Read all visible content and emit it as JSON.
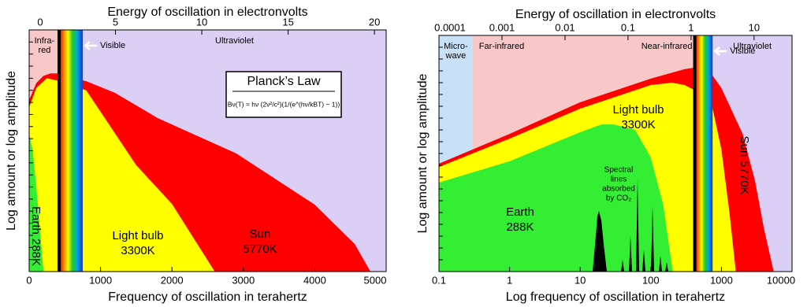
{
  "chart_data": [
    {
      "type": "area",
      "xlabel": "Frequency of oscillation in terahertz",
      "x2label": "Energy of oscillation in electronvolts",
      "ylabel": "Log amount or log amplitude",
      "xlim": [
        0,
        5000
      ],
      "xticks": [
        0,
        1000,
        2000,
        3000,
        4000,
        5000
      ],
      "x2lim": [
        0,
        20.68
      ],
      "x2ticks": [
        0,
        5,
        10,
        15,
        20
      ],
      "ylim": [
        0,
        100
      ],
      "xlog": false,
      "regions": [
        {
          "label": [
            "Infra-",
            "red"
          ],
          "from": 0,
          "to": 430,
          "color": "#f8c8c8"
        },
        {
          "label": [
            "Visible"
          ],
          "from": 430,
          "to": 750,
          "color": "spectrum"
        },
        {
          "label": [
            "Ultraviolet"
          ],
          "from": 750,
          "to": 5000,
          "color": "#dccff5"
        }
      ],
      "series": [
        {
          "name": "Sun",
          "temperature_label": "5770K",
          "color": "#ff0000",
          "x": [
            0,
            100,
            200,
            300,
            400,
            500,
            800,
            1200,
            1800,
            2900,
            4000,
            4560,
            4780
          ],
          "values": [
            71,
            78,
            81,
            82,
            82,
            81,
            78.8,
            74,
            63.5,
            48.9,
            27.7,
            11.4,
            0
          ]
        },
        {
          "name": "Light bulb",
          "temperature_label": "3300K",
          "color": "#ffff00",
          "x": [
            0,
            100,
            250,
            400,
            800,
            1500,
            2000,
            2600
          ],
          "values": [
            68,
            76,
            80,
            79,
            75,
            44,
            28,
            0
          ]
        },
        {
          "name": "Earth",
          "temperature_label": "288K",
          "color": "#33ee33",
          "x": [
            0,
            50,
            100,
            150,
            200
          ],
          "values": [
            57,
            50,
            35,
            18,
            0
          ]
        }
      ],
      "planck": {
        "title": "Planck’s Law",
        "formula": "Bν(T) = hν (2ν²/c²)(1/(e^(hν/kBT) − 1))"
      }
    },
    {
      "type": "area",
      "xlabel": "Log frequency of oscillation in terahertz",
      "x2label": "Energy of oscillation in electronvolts",
      "ylabel": "Log amount or log amplitude",
      "xlim": [
        0.1,
        10000
      ],
      "xticks": [
        0.1,
        1,
        10,
        100,
        1000,
        10000
      ],
      "x2lim": [
        0.0001,
        40
      ],
      "x2ticks": [
        0.0001,
        0.001,
        0.01,
        0.1,
        1,
        10
      ],
      "ylim": [
        0,
        100
      ],
      "xlog": true,
      "regions": [
        {
          "label": [
            "Micro-",
            "wave"
          ],
          "from": 0.1,
          "to": 0.3,
          "color": "#c8e0f8"
        },
        {
          "label": [
            "Far-infrared"
          ],
          "from": 0.3,
          "to": 30,
          "color": "#f8c8c8"
        },
        {
          "label": [
            "Near-infrared"
          ],
          "from": 30,
          "to": 430,
          "color": "#f8c8c8"
        },
        {
          "label": [
            "Visible"
          ],
          "from": 430,
          "to": 750,
          "color": "spectrum"
        },
        {
          "label": [
            "Ultraviolet"
          ],
          "from": 750,
          "to": 10000,
          "color": "#dccff5"
        }
      ],
      "series": [
        {
          "name": "Sun",
          "temperature_label": "5770K",
          "color": "#ff0000",
          "x": [
            0.1,
            1,
            10,
            100,
            300,
            500,
            700,
            1000,
            2000,
            3000,
            4000,
            5500
          ],
          "values": [
            45.7,
            58.3,
            71.7,
            81.7,
            85.7,
            86.7,
            84.3,
            77.7,
            58.3,
            38.3,
            18.3,
            0
          ]
        },
        {
          "name": "Light bulb",
          "temperature_label": "3300K",
          "color": "#ffff00",
          "x": [
            0.1,
            1,
            10,
            100,
            200,
            300,
            500,
            700,
            1000,
            1300,
            1600
          ],
          "values": [
            44.3,
            56.3,
            69,
            79,
            80,
            79,
            75.7,
            73.3,
            51.7,
            25,
            0
          ]
        },
        {
          "name": "Earth",
          "temperature_label": "288K",
          "color": "#33ee33",
          "x": [
            0.1,
            1,
            10,
            20,
            30,
            60,
            100,
            150,
            205
          ],
          "values": [
            37.7,
            46.7,
            59,
            62.3,
            62.3,
            60,
            48.3,
            28.3,
            0
          ]
        }
      ],
      "co2_note": [
        "Spectral",
        "lines",
        "absorbed",
        "by CO₂"
      ]
    }
  ]
}
